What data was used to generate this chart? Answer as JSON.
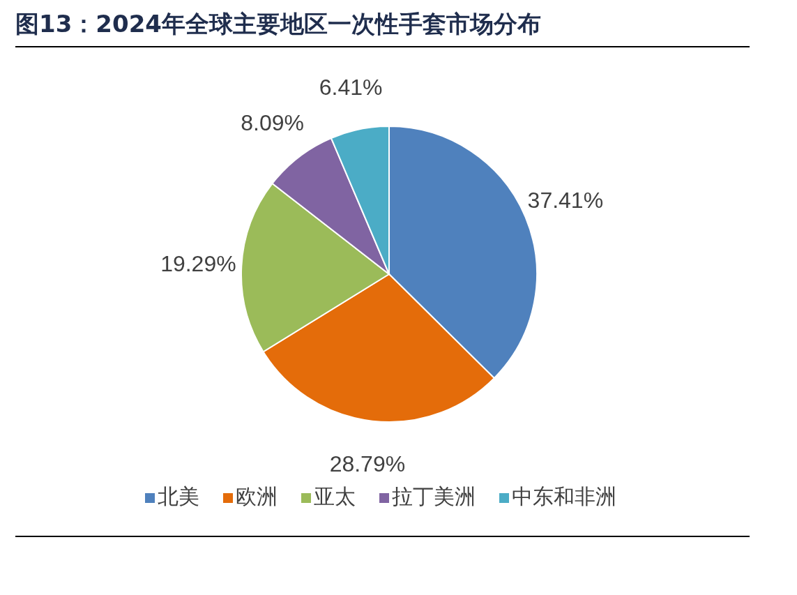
{
  "chart_data": {
    "type": "pie",
    "title": "图13：2024年全球主要地区一次性手套市场分布",
    "categories": [
      "北美",
      "欧洲",
      "亚太",
      "拉丁美洲",
      "中东和非洲"
    ],
    "values": [
      37.41,
      28.79,
      19.29,
      8.09,
      6.41
    ],
    "value_labels": [
      "37.41%",
      "28.79%",
      "19.29%",
      "8.09%",
      "6.41%"
    ],
    "colors": [
      "#4f81bd",
      "#e46c0a",
      "#9bbb59",
      "#8064a2",
      "#4bacc6"
    ],
    "legend": "bottom"
  }
}
